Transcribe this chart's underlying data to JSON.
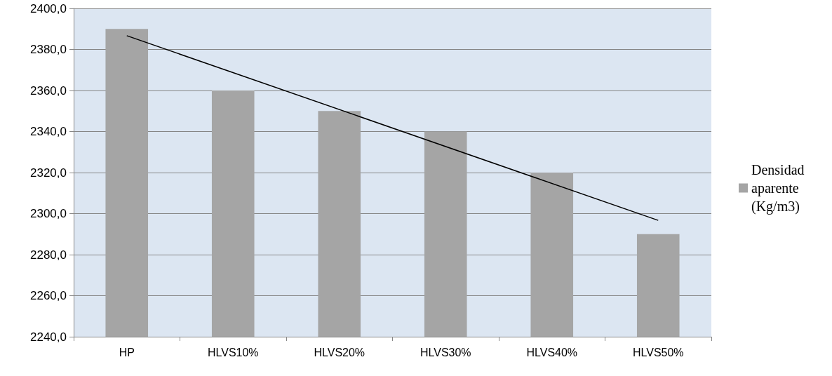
{
  "chart_data": {
    "type": "bar",
    "categories": [
      "HP",
      "HLVS10%",
      "HLVS20%",
      "HLVS30%",
      "HLVS40%",
      "HLVS50%"
    ],
    "series": [
      {
        "name": "Densidad aparente (Kg/m3)",
        "color": "#a5a5a5",
        "values": [
          2390,
          2360,
          2350,
          2340,
          2320,
          2290
        ]
      },
      {
        "type": "line",
        "color": "#000000",
        "x": [
          "HP",
          "HLVS50%"
        ],
        "values": [
          2386.7,
          2296.7
        ],
        "marker": "none",
        "line_style": "solid"
      }
    ],
    "ylim": [
      2240,
      2400
    ],
    "yticks": [
      {
        "value": 2240,
        "label": "2240,0"
      },
      {
        "value": 2260,
        "label": "2260,0"
      },
      {
        "value": 2280,
        "label": "2280,0"
      },
      {
        "value": 2300,
        "label": "2300,0"
      },
      {
        "value": 2320,
        "label": "2320,0"
      },
      {
        "value": 2340,
        "label": "2340,0"
      },
      {
        "value": 2360,
        "label": "2360,0"
      },
      {
        "value": 2380,
        "label": "2380,0"
      },
      {
        "value": 2400,
        "label": "2400,0"
      }
    ],
    "grid": "y",
    "legend": "right"
  }
}
